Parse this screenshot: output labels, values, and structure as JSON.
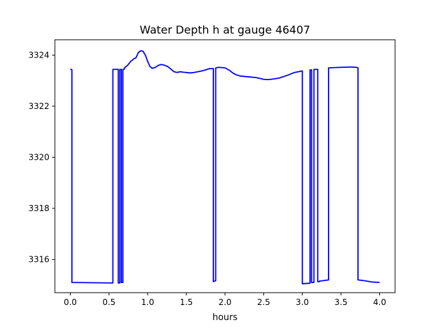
{
  "chart_data": {
    "type": "line",
    "title": "Water Depth h at gauge 46407",
    "xlabel": "hours",
    "ylabel": "",
    "xlim": [
      -0.2,
      4.2
    ],
    "ylim": [
      3314.7,
      3324.6
    ],
    "xticks": [
      0.0,
      0.5,
      1.0,
      1.5,
      2.0,
      2.5,
      3.0,
      3.5,
      4.0
    ],
    "xtick_labels": [
      "0.0",
      "0.5",
      "1.0",
      "1.5",
      "2.0",
      "2.5",
      "3.0",
      "3.5",
      "4.0"
    ],
    "yticks": [
      3316,
      3318,
      3320,
      3322,
      3324
    ],
    "ytick_labels": [
      "3316",
      "3318",
      "3320",
      "3322",
      "3324"
    ],
    "grid": false,
    "legend": null,
    "series": [
      {
        "color": "#0000ff",
        "x": [
          0.0,
          0.02,
          0.02,
          0.55,
          0.55,
          0.62,
          0.62,
          0.64,
          0.64,
          0.66,
          0.66,
          0.68,
          0.68,
          0.7,
          0.7,
          0.74,
          0.78,
          0.82,
          0.85,
          0.88,
          0.91,
          0.94,
          0.97,
          1.0,
          1.03,
          1.06,
          1.1,
          1.14,
          1.18,
          1.22,
          1.26,
          1.3,
          1.34,
          1.38,
          1.42,
          1.46,
          1.5,
          1.55,
          1.6,
          1.65,
          1.7,
          1.75,
          1.8,
          1.85,
          1.85,
          1.88,
          1.88,
          1.92,
          2.0,
          2.06,
          2.1,
          2.15,
          2.2,
          2.3,
          2.4,
          2.46,
          2.5,
          2.56,
          2.62,
          2.7,
          2.8,
          2.9,
          3.0,
          3.0,
          3.1,
          3.1,
          3.12,
          3.12,
          3.15,
          3.15,
          3.2,
          3.2,
          3.22,
          3.22,
          3.34,
          3.34,
          3.5,
          3.6,
          3.65,
          3.7,
          3.72,
          3.72,
          3.8,
          3.9,
          4.0
        ],
        "y": [
          3323.45,
          3323.43,
          3315.1,
          3315.08,
          3323.44,
          3323.44,
          3315.08,
          3315.08,
          3323.44,
          3323.44,
          3315.1,
          3315.1,
          3323.44,
          3323.45,
          3323.5,
          3323.6,
          3323.75,
          3323.85,
          3323.9,
          3324.1,
          3324.17,
          3324.15,
          3324.0,
          3323.75,
          3323.55,
          3323.48,
          3323.52,
          3323.6,
          3323.63,
          3323.6,
          3323.55,
          3323.45,
          3323.35,
          3323.32,
          3323.35,
          3323.33,
          3323.32,
          3323.3,
          3323.32,
          3323.35,
          3323.38,
          3323.42,
          3323.47,
          3323.47,
          3315.13,
          3315.17,
          3323.5,
          3323.52,
          3323.5,
          3323.4,
          3323.3,
          3323.22,
          3323.18,
          3323.15,
          3323.12,
          3323.08,
          3323.05,
          3323.04,
          3323.06,
          3323.1,
          3323.2,
          3323.32,
          3323.38,
          3315.05,
          3315.07,
          3323.42,
          3323.42,
          3315.1,
          3315.1,
          3323.44,
          3323.44,
          3315.13,
          3315.13,
          3315.15,
          3315.2,
          3323.5,
          3323.52,
          3323.53,
          3323.53,
          3323.52,
          3323.5,
          3315.2,
          3315.17,
          3315.12,
          3315.1
        ]
      }
    ]
  }
}
